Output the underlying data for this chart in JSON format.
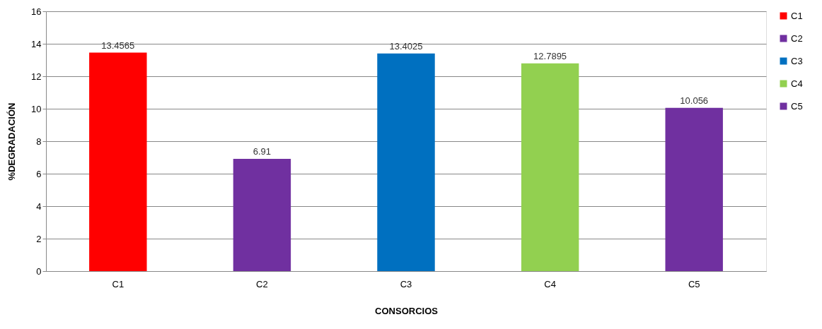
{
  "chart_data": {
    "type": "bar",
    "xlabel": "CONSORCIOS",
    "ylabel": "%DEGRADACIÓN",
    "categories": [
      "C1",
      "C2",
      "C3",
      "C4",
      "C5"
    ],
    "series": [
      {
        "name": "C1",
        "color": "#ff0000",
        "values": [
          13.4565,
          null,
          null,
          null,
          null
        ]
      },
      {
        "name": "C2",
        "color": "#7030a0",
        "values": [
          null,
          6.91,
          null,
          null,
          null
        ]
      },
      {
        "name": "C3",
        "color": "#0070c0",
        "values": [
          null,
          null,
          13.4025,
          null,
          null
        ]
      },
      {
        "name": "C4",
        "color": "#92d050",
        "values": [
          null,
          null,
          null,
          12.7895,
          null
        ]
      },
      {
        "name": "C5",
        "color": "#7030a0",
        "values": [
          null,
          null,
          null,
          null,
          10.056
        ]
      }
    ],
    "ylim": [
      0,
      16
    ],
    "yticks": [
      0,
      2,
      4,
      6,
      8,
      10,
      12,
      14,
      16
    ],
    "grid": "y",
    "legend": "right",
    "data_labels": true
  }
}
